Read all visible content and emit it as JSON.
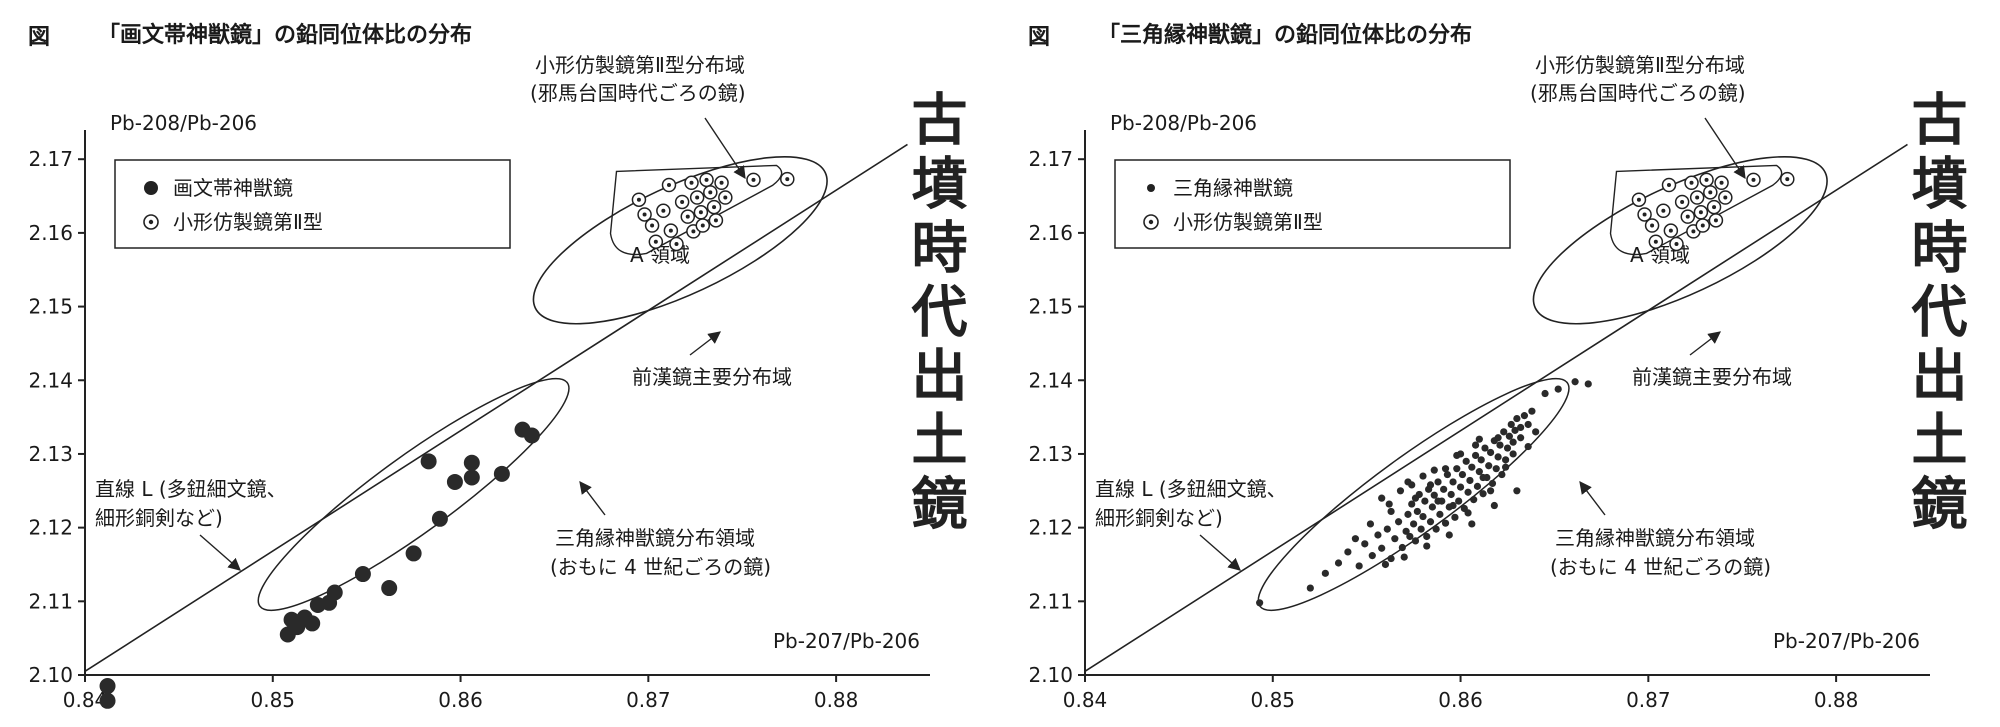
{
  "chart_data": [
    {
      "type": "scatter",
      "title_prefix": "図",
      "title": "「画文帯神獣鏡」の鉛同位体比の分布",
      "ylabel": "Pb-208/Pb-206",
      "xlabel": "Pb-207/Pb-206",
      "xlim": [
        0.84,
        0.885
      ],
      "ylim": [
        2.1,
        2.176
      ],
      "x_ticks": [
        "0.84",
        "0.85",
        "0.86",
        "0.87",
        "0.88"
      ],
      "y_ticks": [
        "2.10",
        "2.11",
        "2.12",
        "2.13",
        "2.14",
        "2.15",
        "2.16",
        "2.17"
      ],
      "grid": false,
      "legend_position": "top-left",
      "legend": [
        "画文帯神獣鏡",
        "小形仿製鏡第Ⅱ型"
      ],
      "annotations": {
        "region_small_1": "小形仿製鏡第Ⅱ型分布域",
        "region_small_2": "(邪馬台国時代ごろの鏡)",
        "region_a": "A 領域",
        "former_han": "前漢鏡主要分布域",
        "line_l_1": "直線 L (多鈕細文鏡、",
        "line_l_2": "細形銅剣など)",
        "sankaku_1": "三角縁神獣鏡分布領域",
        "sankaku_2": "(おもに 4 世紀ごろの鏡)",
        "side": "古墳時代出土鏡"
      },
      "series": [
        {
          "name": "画文帯神獣鏡",
          "points": [
            [
              0.8412,
              2.0985
            ],
            [
              0.8412,
              2.0965
            ],
            [
              0.8508,
              2.1055
            ],
            [
              0.851,
              2.1075
            ],
            [
              0.8513,
              2.1065
            ],
            [
              0.8517,
              2.1078
            ],
            [
              0.8521,
              2.107
            ],
            [
              0.8524,
              2.1095
            ],
            [
              0.853,
              2.1098
            ],
            [
              0.8533,
              2.1112
            ],
            [
              0.8548,
              2.1137
            ],
            [
              0.8562,
              2.1118
            ],
            [
              0.8575,
              2.1165
            ],
            [
              0.8583,
              2.129
            ],
            [
              0.8589,
              2.1212
            ],
            [
              0.8597,
              2.1262
            ],
            [
              0.8606,
              2.1288
            ],
            [
              0.8606,
              2.1268
            ],
            [
              0.8622,
              2.1273
            ],
            [
              0.8633,
              2.1333
            ],
            [
              0.8638,
              2.1325
            ]
          ]
        },
        {
          "name": "小形仿製鏡第Ⅱ型",
          "points": [
            [
              0.8695,
              2.1645
            ],
            [
              0.8698,
              2.1625
            ],
            [
              0.8702,
              2.161
            ],
            [
              0.8704,
              2.1588
            ],
            [
              0.8708,
              2.163
            ],
            [
              0.8711,
              2.1665
            ],
            [
              0.8712,
              2.1603
            ],
            [
              0.8715,
              2.1585
            ],
            [
              0.8718,
              2.1642
            ],
            [
              0.8721,
              2.1622
            ],
            [
              0.8723,
              2.1668
            ],
            [
              0.8724,
              2.1602
            ],
            [
              0.8726,
              2.1648
            ],
            [
              0.8728,
              2.1628
            ],
            [
              0.8729,
              2.161
            ],
            [
              0.8731,
              2.1672
            ],
            [
              0.8733,
              2.1655
            ],
            [
              0.8735,
              2.1635
            ],
            [
              0.8736,
              2.1617
            ],
            [
              0.8739,
              2.1668
            ],
            [
              0.8741,
              2.1648
            ],
            [
              0.8756,
              2.1672
            ],
            [
              0.8774,
              2.1673
            ]
          ]
        }
      ]
    },
    {
      "type": "scatter",
      "title_prefix": "図",
      "title": "「三角縁神獣鏡」の鉛同位体比の分布",
      "ylabel": "Pb-208/Pb-206",
      "xlabel": "Pb-207/Pb-206",
      "xlim": [
        0.84,
        0.885
      ],
      "ylim": [
        2.1,
        2.176
      ],
      "x_ticks": [
        "0.84",
        "0.85",
        "0.86",
        "0.87",
        "0.88"
      ],
      "y_ticks": [
        "2.10",
        "2.11",
        "2.12",
        "2.13",
        "2.14",
        "2.15",
        "2.16",
        "2.17"
      ],
      "grid": false,
      "legend_position": "top-left",
      "legend": [
        "三角縁神獣鏡",
        "小形仿製鏡第Ⅱ型"
      ],
      "annotations": {
        "region_small_1": "小形仿製鏡第Ⅱ型分布域",
        "region_small_2": "(邪馬台国時代ごろの鏡)",
        "region_a": "A 領域",
        "former_han": "前漢鏡主要分布域",
        "line_l_1": "直線 L (多鈕細文鏡、",
        "line_l_2": "細形銅剣など)",
        "sankaku_1": "三角縁神獣鏡分布領域",
        "sankaku_2": "(おもに 4 世紀ごろの鏡)",
        "side": "古墳時代出土鏡"
      },
      "series": [
        {
          "name": "三角縁神獣鏡",
          "points": [
            [
              0.8493,
              2.1098
            ],
            [
              0.852,
              2.1118
            ],
            [
              0.8528,
              2.1138
            ],
            [
              0.8535,
              2.1152
            ],
            [
              0.854,
              2.1167
            ],
            [
              0.8546,
              2.1148
            ],
            [
              0.8549,
              2.1178
            ],
            [
              0.8553,
              2.1162
            ],
            [
              0.8556,
              2.119
            ],
            [
              0.8558,
              2.1172
            ],
            [
              0.8561,
              2.1198
            ],
            [
              0.8563,
              2.1158
            ],
            [
              0.8565,
              2.1185
            ],
            [
              0.8567,
              2.1208
            ],
            [
              0.8569,
              2.1173
            ],
            [
              0.8571,
              2.1195
            ],
            [
              0.8572,
              2.1218
            ],
            [
              0.8573,
              2.1188
            ],
            [
              0.8574,
              2.1232
            ],
            [
              0.8575,
              2.1205
            ],
            [
              0.8576,
              2.1182
            ],
            [
              0.8577,
              2.1222
            ],
            [
              0.8578,
              2.1245
            ],
            [
              0.8579,
              2.1198
            ],
            [
              0.858,
              2.1215
            ],
            [
              0.8581,
              2.1236
            ],
            [
              0.8582,
              2.1188
            ],
            [
              0.8583,
              2.1252
            ],
            [
              0.8584,
              2.1208
            ],
            [
              0.8585,
              2.1228
            ],
            [
              0.8586,
              2.1244
            ],
            [
              0.8587,
              2.1198
            ],
            [
              0.8588,
              2.1262
            ],
            [
              0.8589,
              2.1218
            ],
            [
              0.859,
              2.1236
            ],
            [
              0.8591,
              2.1252
            ],
            [
              0.8592,
              2.1206
            ],
            [
              0.8593,
              2.1272
            ],
            [
              0.8594,
              2.1228
            ],
            [
              0.8595,
              2.1245
            ],
            [
              0.8596,
              2.1262
            ],
            [
              0.8597,
              2.1214
            ],
            [
              0.8598,
              2.128
            ],
            [
              0.8599,
              2.1236
            ],
            [
              0.86,
              2.1255
            ],
            [
              0.8601,
              2.1272
            ],
            [
              0.8602,
              2.1226
            ],
            [
              0.8603,
              2.129
            ],
            [
              0.8604,
              2.1248
            ],
            [
              0.8605,
              2.1264
            ],
            [
              0.8606,
              2.1282
            ],
            [
              0.8607,
              2.1238
            ],
            [
              0.8608,
              2.1298
            ],
            [
              0.8609,
              2.1256
            ],
            [
              0.861,
              2.1276
            ],
            [
              0.8611,
              2.1292
            ],
            [
              0.8612,
              2.1246
            ],
            [
              0.8613,
              2.1308
            ],
            [
              0.8614,
              2.1268
            ],
            [
              0.8615,
              2.1284
            ],
            [
              0.8616,
              2.1302
            ],
            [
              0.8617,
              2.126
            ],
            [
              0.8618,
              2.1318
            ],
            [
              0.8619,
              2.128
            ],
            [
              0.862,
              2.1296
            ],
            [
              0.8621,
              2.1312
            ],
            [
              0.8622,
              2.1272
            ],
            [
              0.8623,
              2.133
            ],
            [
              0.8624,
              2.1292
            ],
            [
              0.8625,
              2.1308
            ],
            [
              0.8626,
              2.1324
            ],
            [
              0.8627,
              2.134
            ],
            [
              0.8628,
              2.1316
            ],
            [
              0.8629,
              2.1332
            ],
            [
              0.863,
              2.1348
            ],
            [
              0.8632,
              2.1322
            ],
            [
              0.8634,
              2.1352
            ],
            [
              0.8636,
              2.134
            ],
            [
              0.8638,
              2.1358
            ],
            [
              0.864,
              2.133
            ],
            [
              0.8645,
              2.1382
            ],
            [
              0.8652,
              2.1388
            ],
            [
              0.8661,
              2.1398
            ],
            [
              0.8668,
              2.1395
            ],
            [
              0.8558,
              2.124
            ],
            [
              0.8563,
              2.1222
            ],
            [
              0.8568,
              2.125
            ],
            [
              0.8572,
              2.1262
            ],
            [
              0.8576,
              2.124
            ],
            [
              0.858,
              2.127
            ],
            [
              0.8584,
              2.1258
            ],
            [
              0.8588,
              2.1236
            ],
            [
              0.8592,
              2.128
            ],
            [
              0.8596,
              2.123
            ],
            [
              0.86,
              2.13
            ],
            [
              0.8604,
              2.122
            ],
            [
              0.8608,
              2.1312
            ],
            [
              0.8612,
              2.1268
            ],
            [
              0.8616,
              2.125
            ],
            [
              0.862,
              2.1322
            ],
            [
              0.8624,
              2.1282
            ],
            [
              0.8628,
              2.13
            ],
            [
              0.8632,
              2.1336
            ],
            [
              0.8636,
              2.131
            ],
            [
              0.856,
              2.115
            ],
            [
              0.857,
              2.116
            ],
            [
              0.8582,
              2.1175
            ],
            [
              0.8594,
              2.119
            ],
            [
              0.8606,
              2.1205
            ],
            [
              0.8618,
              2.123
            ],
            [
              0.863,
              2.125
            ],
            [
              0.8544,
              2.1185
            ],
            [
              0.8552,
              2.1205
            ],
            [
              0.8562,
              2.1232
            ],
            [
              0.8574,
              2.1258
            ],
            [
              0.8586,
              2.1278
            ],
            [
              0.8598,
              2.1298
            ],
            [
              0.861,
              2.132
            ]
          ]
        },
        {
          "name": "小形仿製鏡第Ⅱ型",
          "points": [
            [
              0.8695,
              2.1645
            ],
            [
              0.8698,
              2.1625
            ],
            [
              0.8702,
              2.161
            ],
            [
              0.8704,
              2.1588
            ],
            [
              0.8708,
              2.163
            ],
            [
              0.8711,
              2.1665
            ],
            [
              0.8712,
              2.1603
            ],
            [
              0.8715,
              2.1585
            ],
            [
              0.8718,
              2.1642
            ],
            [
              0.8721,
              2.1622
            ],
            [
              0.8723,
              2.1668
            ],
            [
              0.8724,
              2.1602
            ],
            [
              0.8726,
              2.1648
            ],
            [
              0.8728,
              2.1628
            ],
            [
              0.8729,
              2.161
            ],
            [
              0.8731,
              2.1672
            ],
            [
              0.8733,
              2.1655
            ],
            [
              0.8735,
              2.1635
            ],
            [
              0.8736,
              2.1617
            ],
            [
              0.8739,
              2.1668
            ],
            [
              0.8741,
              2.1648
            ],
            [
              0.8756,
              2.1672
            ],
            [
              0.8774,
              2.1673
            ]
          ]
        }
      ]
    }
  ]
}
